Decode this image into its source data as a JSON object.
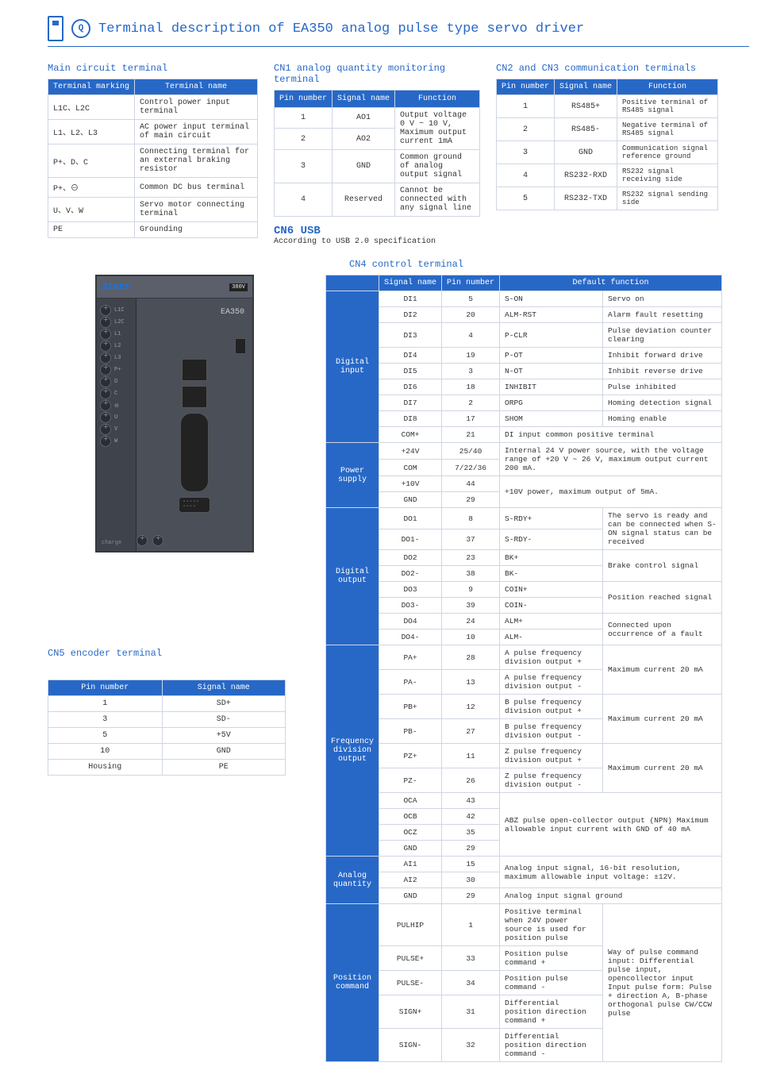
{
  "title": "Terminal description of EA350 analog pulse type servo driver",
  "colors": {
    "blue": "#2768c7",
    "border": "#cfd6e4",
    "bg": "#ffffff"
  },
  "main": {
    "title": "Main circuit terminal",
    "cols": [
      "Terminal marking",
      "Terminal name"
    ],
    "rows": [
      [
        "L1C、L2C",
        "Control power input terminal"
      ],
      [
        "L1、L2、L3",
        "AC power input terminal of main circuit"
      ],
      [
        "P+、D、C",
        "Connecting terminal for an external braking resistor"
      ],
      [
        "P+、⊖",
        "Common DC bus terminal"
      ],
      [
        "U、V、W",
        "Servo motor connecting terminal"
      ],
      [
        "PE",
        "Grounding"
      ]
    ]
  },
  "cn1": {
    "title": "CN1 analog quantity monitoring terminal",
    "cols": [
      "Pin number",
      "Signal name",
      "Function"
    ],
    "rows": [
      [
        "1",
        "AO1",
        "Output voltage 0 V ~ 10 V, Maximum output current 1mA"
      ],
      [
        "2",
        "AO2",
        ""
      ],
      [
        "3",
        "GND",
        "Common ground of analog output signal"
      ],
      [
        "4",
        "Reserved",
        "Cannot be connected with any signal line"
      ]
    ]
  },
  "cn2": {
    "title": "CN2 and CN3 communication terminals",
    "cols": [
      "Pin number",
      "Signal name",
      "Function"
    ],
    "rows": [
      [
        "1",
        "RS485+",
        "Positive terminal of RS485 signal"
      ],
      [
        "2",
        "RS485-",
        "Negative terminal of RS485  signal"
      ],
      [
        "3",
        "GND",
        "Communication signal reference ground"
      ],
      [
        "4",
        "RS232-RXD",
        "RS232 signal receiving side"
      ],
      [
        "5",
        "RS232-TXD",
        "RS232 signal sending side"
      ]
    ]
  },
  "cn6": {
    "title": "CN6 USB",
    "sub": "According to USB 2.0 specification"
  },
  "cn5": {
    "title": "CN5 encoder terminal",
    "cols": [
      "Pin number",
      "Signal name"
    ],
    "rows": [
      [
        "1",
        "SD+"
      ],
      [
        "3",
        "SD-"
      ],
      [
        "5",
        "+5V"
      ],
      [
        "10",
        "GND"
      ],
      [
        "Housing",
        "PE"
      ]
    ]
  },
  "cn4": {
    "title": "CN4 control terminal",
    "cols": [
      "",
      "Signal name",
      "Pin number",
      "Default function",
      ""
    ],
    "groups": [
      {
        "name": "Digital input",
        "rows": [
          [
            "DI1",
            "5",
            "S-ON",
            "Servo on"
          ],
          [
            "DI2",
            "20",
            "ALM-RST",
            "Alarm fault resetting"
          ],
          [
            "DI3",
            "4",
            "P-CLR",
            "Pulse deviation counter clearing"
          ],
          [
            "DI4",
            "19",
            "P-OT",
            "Inhibit forward drive"
          ],
          [
            "DI5",
            "3",
            "N-OT",
            "Inhibit reverse drive"
          ],
          [
            "DI6",
            "18",
            "INHIBIT",
            "Pulse inhibited"
          ],
          [
            "DI7",
            "2",
            "ORPG",
            "Homing detection signal"
          ],
          [
            "DI8",
            "17",
            "SHOM",
            "Homing enable"
          ],
          [
            "COM+",
            "21",
            "DI input common positive terminal",
            ""
          ]
        ]
      },
      {
        "name": "Power supply",
        "rows": [
          [
            "+24V",
            "25/40",
            "Internal 24 V power source, with the voltage range of +20 V ~ 26 V, maximum output current 200 mA.",
            ""
          ],
          [
            "COM",
            "7/22/36",
            "",
            ""
          ],
          [
            "+10V",
            "44",
            "+10V power, maximum output of 5mA.",
            ""
          ],
          [
            "GND",
            "29",
            "",
            ""
          ]
        ]
      },
      {
        "name": "Digital output",
        "rows": [
          [
            "DO1",
            "8",
            "S-RDY+",
            "The servo is ready and can be connected when S-ON signal status can be received"
          ],
          [
            "DO1-",
            "37",
            "S-RDY-",
            ""
          ],
          [
            "DO2",
            "23",
            "BK+",
            "Brake control signal"
          ],
          [
            "DO2-",
            "38",
            "BK-",
            ""
          ],
          [
            "DO3",
            "9",
            "COIN+",
            "Position reached signal"
          ],
          [
            "DO3-",
            "39",
            "COIN-",
            ""
          ],
          [
            "DO4",
            "24",
            "ALM+",
            "Connected upon occurrence of a fault"
          ],
          [
            "DO4-",
            "10",
            "ALM-",
            ""
          ]
        ]
      },
      {
        "name": "Frequency division output",
        "rows": [
          [
            "PA+",
            "28",
            "A pulse frequency division output +",
            "Maximum current 20 mA"
          ],
          [
            "PA-",
            "13",
            "A pulse frequency division output -",
            ""
          ],
          [
            "PB+",
            "12",
            "B pulse frequency division output +",
            "Maximum current 20 mA"
          ],
          [
            "PB-",
            "27",
            "B pulse frequency division output -",
            ""
          ],
          [
            "PZ+",
            "11",
            "Z pulse frequency division output +",
            "Maximum current 20 mA"
          ],
          [
            "PZ-",
            "26",
            "Z pulse frequency division output -",
            ""
          ],
          [
            "OCA",
            "43",
            "ABZ pulse open-collector output (NPN) Maximum allowable input current with GND of 40 mA",
            ""
          ],
          [
            "OCB",
            "42",
            "",
            ""
          ],
          [
            "OCZ",
            "35",
            "",
            ""
          ],
          [
            "GND",
            "29",
            "",
            ""
          ]
        ]
      },
      {
        "name": "Analog quantity",
        "rows": [
          [
            "AI1",
            "15",
            "Analog input signal, 16-bit resolution, maximum allowable input voltage: ±12V.",
            ""
          ],
          [
            "AI2",
            "30",
            "",
            ""
          ],
          [
            "GND",
            "29",
            "Analog input signal ground",
            ""
          ]
        ]
      },
      {
        "name": "Position command",
        "rows": [
          [
            "PULHIP",
            "1",
            "Positive terminal when 24V power source is used for position pulse",
            "Way of pulse command input: Differential pulse input, opencollector input\nInput pulse form: Pulse + direction A, B-phase orthogonal pulse CW/CCW pulse"
          ],
          [
            "PULSE+",
            "33",
            "Position pulse command +",
            ""
          ],
          [
            "PULSE-",
            "34",
            "Position pulse command -",
            ""
          ],
          [
            "SIGN+",
            "31",
            "Differential position direction command +",
            ""
          ],
          [
            "SIGN-",
            "32",
            "Differential position direction command -",
            ""
          ]
        ]
      }
    ]
  },
  "driver": {
    "brand": "SINEE",
    "model": "EA350",
    "voltage": "380V",
    "left_terminals": [
      "L1C",
      "L2C",
      "L1",
      "L2",
      "L3",
      "P+",
      "D",
      "C",
      "⊖",
      "U",
      "V",
      "W"
    ]
  }
}
